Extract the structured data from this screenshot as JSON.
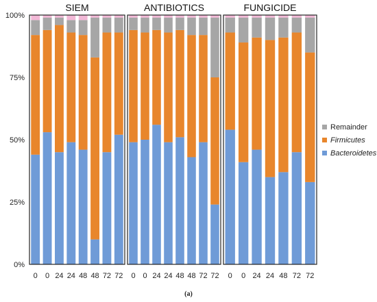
{
  "chart_data": {
    "type": "bar",
    "stacked": true,
    "normalized": true,
    "y_tick_labels": [
      "0%",
      "25%",
      "50%",
      "75%",
      "100%"
    ],
    "ylim": [
      0,
      100
    ],
    "grid": false,
    "legend_position": "right",
    "colors": {
      "Bacteroidetes": "#6f9bd7",
      "Firmicutes": "#e8862c",
      "Remainder": "#a6a6a6",
      "Other": "#f2b8d6"
    },
    "legend": [
      {
        "name": "Remainder",
        "italic": false,
        "color": "#a6a6a6"
      },
      {
        "name": "Firmicutes",
        "italic": true,
        "color": "#e8862c"
      },
      {
        "name": "Bacteroidetes",
        "italic": true,
        "color": "#6f9bd7"
      }
    ],
    "panels": [
      {
        "title": "SIEM",
        "categories": [
          "0",
          "0",
          "24",
          "24",
          "48",
          "48",
          "72",
          "72"
        ],
        "series": [
          {
            "name": "Bacteroidetes",
            "values": [
              44,
              53,
              45,
              49,
              46,
              10,
              45,
              52
            ]
          },
          {
            "name": "Firmicutes",
            "values": [
              48,
              41,
              51,
              44,
              46,
              73,
              48,
              41
            ]
          },
          {
            "name": "Remainder",
            "values": [
              6,
              5,
              3,
              5,
              6,
              16,
              6,
              6
            ]
          }
        ]
      },
      {
        "title": "ANTIBIOTICS",
        "categories": [
          "0",
          "0",
          "24",
          "24",
          "48",
          "48",
          "72",
          "72"
        ],
        "series": [
          {
            "name": "Bacteroidetes",
            "values": [
              49,
              50,
              56,
              49,
              51,
              43,
              49,
              24
            ]
          },
          {
            "name": "Firmicutes",
            "values": [
              45,
              43,
              38,
              44,
              43,
              49,
              43,
              51
            ]
          },
          {
            "name": "Remainder",
            "values": [
              5,
              6,
              5,
              6,
              5,
              7,
              7,
              24
            ]
          }
        ]
      },
      {
        "title": "FUNGICIDE",
        "categories": [
          "0",
          "0",
          "24",
          "24",
          "48",
          "72",
          "72"
        ],
        "series": [
          {
            "name": "Bacteroidetes",
            "values": [
              54,
              41,
              46,
              35,
              37,
              45,
              33
            ]
          },
          {
            "name": "Firmicutes",
            "values": [
              39,
              48,
              45,
              55,
              54,
              48,
              52
            ]
          },
          {
            "name": "Remainder",
            "values": [
              6,
              10,
              8,
              9,
              8,
              6,
              14
            ]
          }
        ]
      }
    ]
  },
  "caption": "(a)"
}
